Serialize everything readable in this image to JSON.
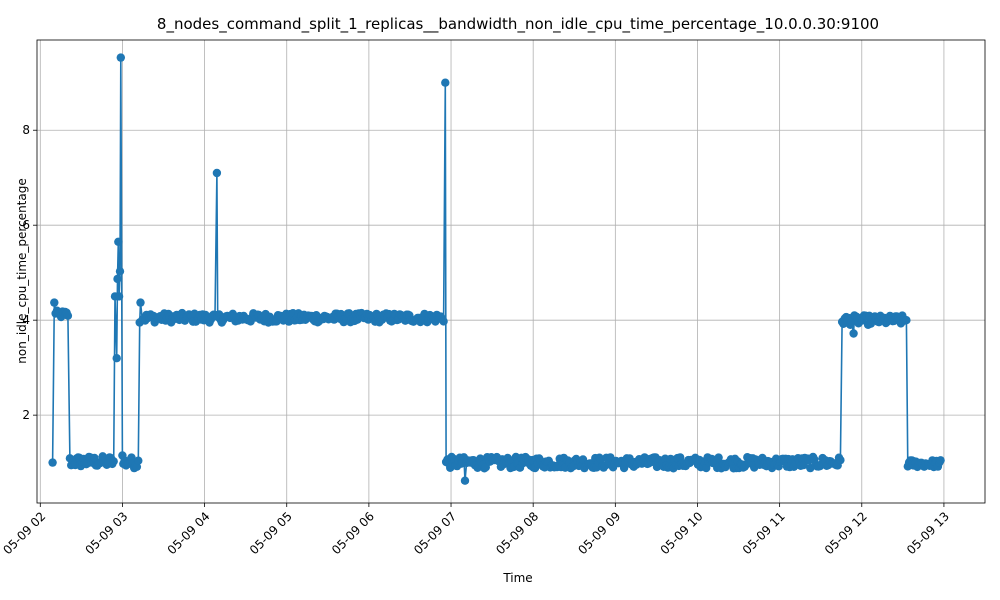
{
  "chart_data": {
    "type": "line",
    "title": "8_nodes_command_split_1_replicas__bandwidth_non_idle_cpu_time_percentage_10.0.0.30:9100",
    "xlabel": "Time",
    "ylabel": "non_idle_cpu_time_percentage",
    "x_range_hours": [
      1.96,
      13.5
    ],
    "ylim": [
      0.15,
      9.9
    ],
    "y_ticks": [
      2,
      4,
      6,
      8
    ],
    "x_ticks": [
      {
        "hour": 2,
        "label": "05-09 02"
      },
      {
        "hour": 3,
        "label": "05-09 03"
      },
      {
        "hour": 4,
        "label": "05-09 04"
      },
      {
        "hour": 5,
        "label": "05-09 05"
      },
      {
        "hour": 6,
        "label": "05-09 06"
      },
      {
        "hour": 7,
        "label": "05-09 07"
      },
      {
        "hour": 8,
        "label": "05-09 08"
      },
      {
        "hour": 9,
        "label": "05-09 09"
      },
      {
        "hour": 10,
        "label": "05-09 10"
      },
      {
        "hour": 11,
        "label": "05-09 11"
      },
      {
        "hour": 12,
        "label": "05-09 12"
      },
      {
        "hour": 13,
        "label": "05-09 13"
      }
    ],
    "grid": true,
    "color": "#1f77b4",
    "sample_interval_min": 1,
    "segments": [
      {
        "start": 2.15,
        "end": 2.16,
        "base": 1.0,
        "noise": 0.0
      },
      {
        "start": 2.17,
        "end": 2.35,
        "base": 4.12,
        "noise": 0.08
      },
      {
        "start": 2.36,
        "end": 2.9,
        "base": 1.02,
        "noise": 0.12
      },
      {
        "start": 2.91,
        "end": 3.0,
        "base": 4.5,
        "noise": 0.0
      },
      {
        "start": 3.01,
        "end": 3.2,
        "base": 1.0,
        "noise": 0.12
      },
      {
        "start": 3.21,
        "end": 6.93,
        "base": 4.05,
        "noise": 0.1
      },
      {
        "start": 6.94,
        "end": 11.75,
        "base": 1.0,
        "noise": 0.12
      },
      {
        "start": 11.76,
        "end": 12.55,
        "base": 4.0,
        "noise": 0.1
      },
      {
        "start": 12.56,
        "end": 12.97,
        "base": 0.98,
        "noise": 0.08
      }
    ],
    "notable_points": [
      {
        "hour": 2.15,
        "value": 1.0
      },
      {
        "hour": 2.17,
        "value": 4.37
      },
      {
        "hour": 2.93,
        "value": 3.2
      },
      {
        "hour": 2.94,
        "value": 4.87
      },
      {
        "hour": 2.95,
        "value": 5.65
      },
      {
        "hour": 2.97,
        "value": 5.03
      },
      {
        "hour": 2.98,
        "value": 9.53
      },
      {
        "hour": 3.0,
        "value": 1.15
      },
      {
        "hour": 3.22,
        "value": 4.37
      },
      {
        "hour": 4.15,
        "value": 7.1
      },
      {
        "hour": 6.93,
        "value": 9.0
      },
      {
        "hour": 7.17,
        "value": 0.62
      },
      {
        "hour": 11.9,
        "value": 3.72
      }
    ]
  }
}
